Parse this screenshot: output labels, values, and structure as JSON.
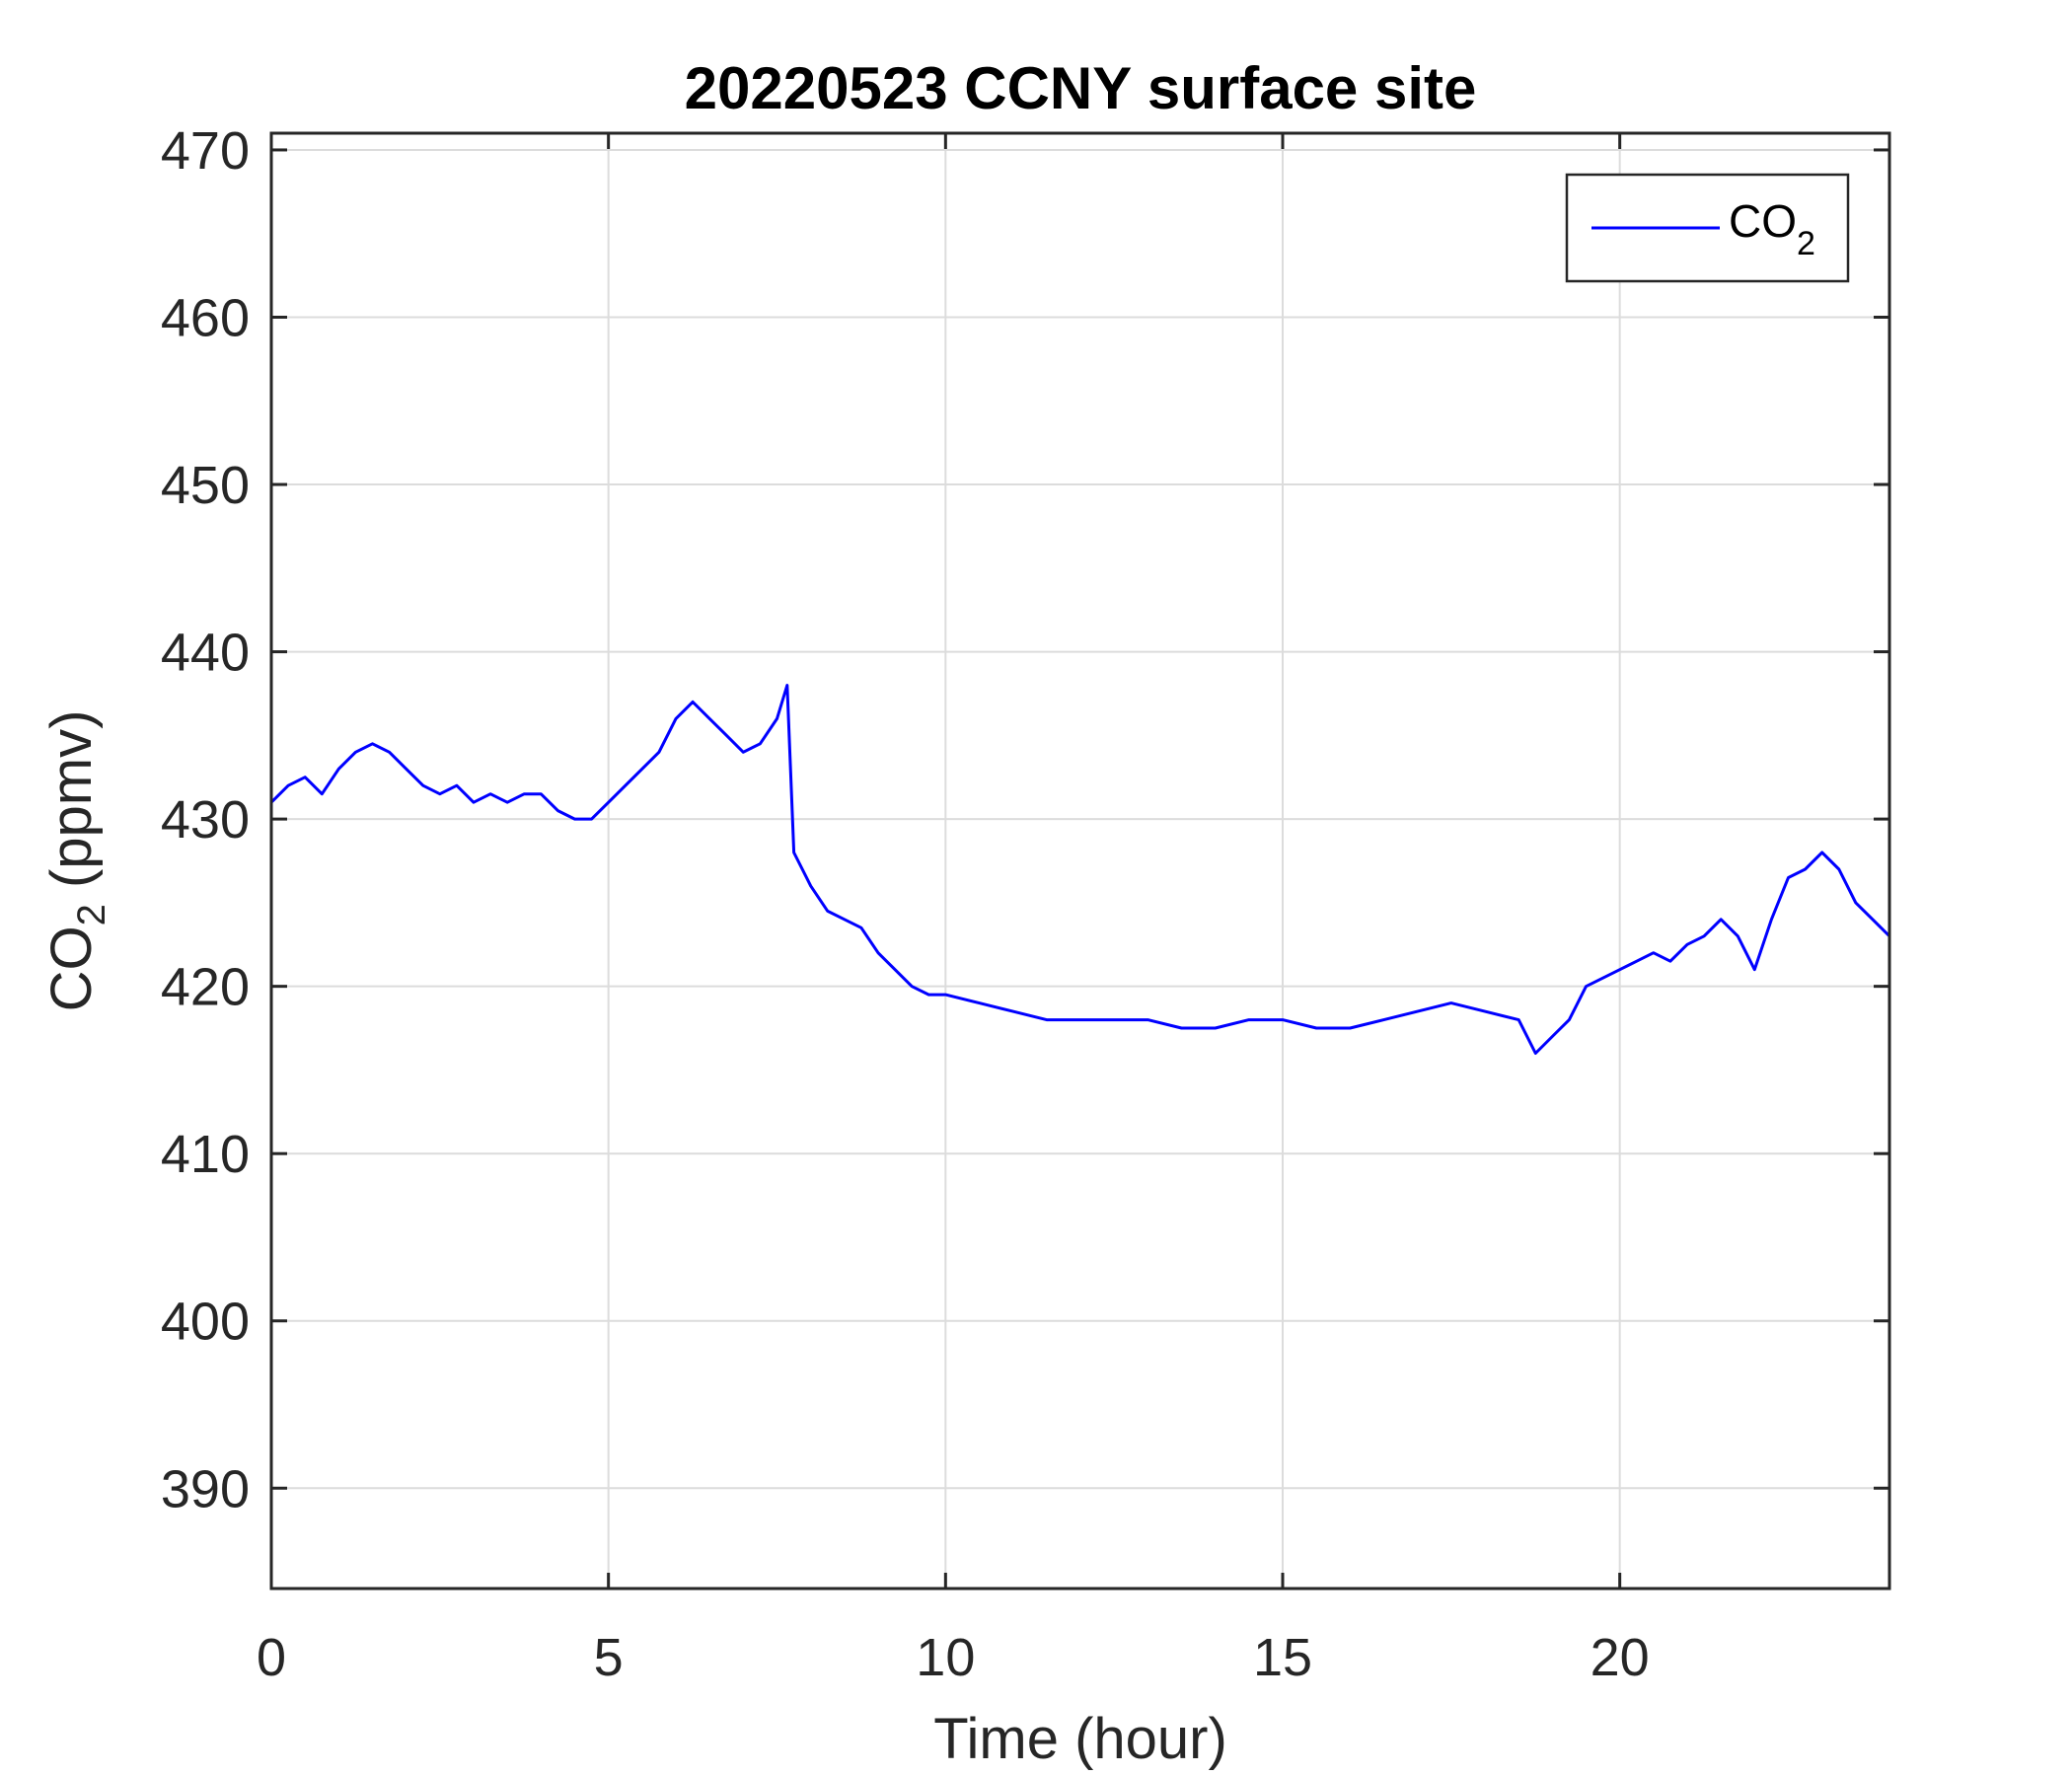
{
  "chart_data": {
    "type": "line",
    "title": "20220523 CCNY surface site",
    "xlabel": "Time (hour)",
    "ylabel": {
      "main": "CO",
      "sub": "2",
      "suffix": " (ppmv)"
    },
    "xlim": [
      0,
      24
    ],
    "ylim": [
      384,
      471
    ],
    "xticks": [
      0,
      5,
      10,
      15,
      20
    ],
    "yticks": [
      390,
      400,
      410,
      420,
      430,
      440,
      450,
      460,
      470
    ],
    "grid": true,
    "legend_position": "top-right",
    "series": [
      {
        "name": "CO2",
        "legend_label": {
          "main": "CO",
          "sub": "2"
        },
        "color": "#0000ff",
        "x": [
          0,
          0.25,
          0.5,
          0.75,
          1,
          1.25,
          1.5,
          1.75,
          2,
          2.25,
          2.5,
          2.75,
          3,
          3.25,
          3.5,
          3.75,
          4,
          4.25,
          4.5,
          4.75,
          5,
          5.25,
          5.5,
          5.75,
          6,
          6.25,
          6.5,
          6.75,
          7,
          7.25,
          7.5,
          7.65,
          7.75,
          8,
          8.25,
          8.5,
          8.75,
          9,
          9.25,
          9.5,
          9.75,
          10,
          10.5,
          11,
          11.5,
          12,
          12.5,
          13,
          13.5,
          14,
          14.5,
          15,
          15.5,
          16,
          16.5,
          17,
          17.5,
          18,
          18.5,
          18.75,
          19,
          19.25,
          19.5,
          19.75,
          20,
          20.25,
          20.5,
          20.75,
          21,
          21.25,
          21.5,
          21.75,
          22,
          22.25,
          22.5,
          22.75,
          23,
          23.25,
          23.5,
          23.75,
          24
        ],
        "y": [
          431,
          432,
          432.5,
          431.5,
          433,
          434,
          434.5,
          434,
          433,
          432,
          431.5,
          432,
          431,
          431.5,
          431,
          431.5,
          431.5,
          430.5,
          430,
          430,
          431,
          432,
          433,
          434,
          436,
          437,
          436,
          435,
          434,
          434.5,
          436,
          438,
          428,
          426,
          424.5,
          424,
          423.5,
          422,
          421,
          420,
          419.5,
          419.5,
          419,
          418.5,
          418,
          418,
          418,
          418,
          417.5,
          417.5,
          418,
          418,
          417.5,
          417.5,
          418,
          418.5,
          419,
          418.5,
          418,
          416,
          417,
          418,
          420,
          420.5,
          421,
          421.5,
          422,
          421.5,
          422.5,
          423,
          424,
          423,
          421,
          424,
          426.5,
          427,
          428,
          427,
          425,
          424,
          423
        ]
      }
    ]
  }
}
